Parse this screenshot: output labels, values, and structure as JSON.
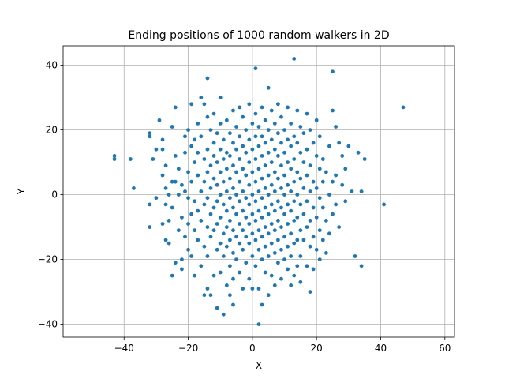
{
  "chart_data": {
    "type": "scatter",
    "title": "Ending positions of 1000 random walkers in 2D",
    "xlabel": "X",
    "ylabel": "Y",
    "xlim": [
      -59,
      63
    ],
    "ylim": [
      -44,
      46
    ],
    "x_ticks": [
      -40,
      -20,
      0,
      20,
      40,
      60
    ],
    "y_ticks": [
      -40,
      -20,
      0,
      20,
      40
    ],
    "x_tick_labels": [
      "−40",
      "−20",
      "0",
      "20",
      "40",
      "60"
    ],
    "y_tick_labels": [
      "−40",
      "−20",
      "0",
      "20",
      "40"
    ],
    "grid": true,
    "legend": "none",
    "marker_color": "#1f77b4",
    "points": [
      [
        -43,
        12
      ],
      [
        -43,
        11
      ],
      [
        -38,
        11
      ],
      [
        -37,
        2
      ],
      [
        -32,
        19
      ],
      [
        -32,
        18
      ],
      [
        -32,
        -3
      ],
      [
        -32,
        -10
      ],
      [
        -31,
        11
      ],
      [
        -30,
        14
      ],
      [
        -30,
        -1
      ],
      [
        -29,
        23
      ],
      [
        -28,
        17
      ],
      [
        -28,
        14
      ],
      [
        -28,
        6
      ],
      [
        -28,
        -9
      ],
      [
        -27,
        9
      ],
      [
        -27,
        2
      ],
      [
        -27,
        -3
      ],
      [
        -27,
        -14
      ],
      [
        -26,
        0
      ],
      [
        -26,
        -8
      ],
      [
        -26,
        -15
      ],
      [
        -25,
        4
      ],
      [
        -25,
        21
      ],
      [
        -25,
        -4
      ],
      [
        -25,
        -25
      ],
      [
        -24,
        27
      ],
      [
        -24,
        12
      ],
      [
        -24,
        4
      ],
      [
        -24,
        -21
      ],
      [
        -23,
        8
      ],
      [
        -23,
        0
      ],
      [
        -23,
        -11
      ],
      [
        -22,
        3
      ],
      [
        -22,
        -7
      ],
      [
        -22,
        -20
      ],
      [
        -22,
        -23
      ],
      [
        -21,
        18
      ],
      [
        -21,
        13
      ],
      [
        -21,
        1
      ],
      [
        -21,
        -13
      ],
      [
        -20,
        20
      ],
      [
        -20,
        7
      ],
      [
        -20,
        -1
      ],
      [
        -20,
        -9
      ],
      [
        -20,
        -17
      ],
      [
        -19,
        28
      ],
      [
        -19,
        15
      ],
      [
        -19,
        4
      ],
      [
        -19,
        -6
      ],
      [
        -19,
        -19
      ],
      [
        -18,
        17
      ],
      [
        -18,
        10
      ],
      [
        -18,
        -2
      ],
      [
        -18,
        -11
      ],
      [
        -18,
        -25
      ],
      [
        -17,
        22
      ],
      [
        -17,
        13
      ],
      [
        -17,
        6
      ],
      [
        -17,
        -5
      ],
      [
        -17,
        -14
      ],
      [
        -16,
        30
      ],
      [
        -16,
        18
      ],
      [
        -16,
        1
      ],
      [
        -16,
        -8
      ],
      [
        -16,
        -22
      ],
      [
        -15,
        28
      ],
      [
        -15,
        11
      ],
      [
        -15,
        4
      ],
      [
        -15,
        -3
      ],
      [
        -15,
        -16
      ],
      [
        -15,
        -31
      ],
      [
        -14,
        36
      ],
      [
        -14,
        24
      ],
      [
        -14,
        14
      ],
      [
        -14,
        7
      ],
      [
        -14,
        -1
      ],
      [
        -14,
        -10
      ],
      [
        -14,
        -19
      ],
      [
        -14,
        -29
      ],
      [
        -13,
        20
      ],
      [
        -13,
        9
      ],
      [
        -13,
        2
      ],
      [
        -13,
        -6
      ],
      [
        -13,
        -13
      ],
      [
        -13,
        -31
      ],
      [
        -12,
        25
      ],
      [
        -12,
        16
      ],
      [
        -12,
        12
      ],
      [
        -12,
        5
      ],
      [
        -12,
        -4
      ],
      [
        -12,
        -11
      ],
      [
        -12,
        -25
      ],
      [
        -11,
        19
      ],
      [
        -11,
        10
      ],
      [
        -11,
        3
      ],
      [
        -11,
        -2
      ],
      [
        -11,
        -9
      ],
      [
        -11,
        -17
      ],
      [
        -11,
        -35
      ],
      [
        -10,
        30
      ],
      [
        -10,
        22
      ],
      [
        -10,
        14
      ],
      [
        -10,
        7
      ],
      [
        -10,
        0
      ],
      [
        -10,
        -7
      ],
      [
        -10,
        -15
      ],
      [
        -10,
        -24
      ],
      [
        -9,
        17
      ],
      [
        -9,
        11
      ],
      [
        -9,
        4
      ],
      [
        -9,
        -3
      ],
      [
        -9,
        -12
      ],
      [
        -9,
        -19
      ],
      [
        -9,
        -37
      ],
      [
        -8,
        23
      ],
      [
        -8,
        13
      ],
      [
        -8,
        8
      ],
      [
        -8,
        1
      ],
      [
        -8,
        -5
      ],
      [
        -8,
        -10
      ],
      [
        -8,
        -16
      ],
      [
        -8,
        -28
      ],
      [
        -7,
        19
      ],
      [
        -7,
        12
      ],
      [
        -7,
        5
      ],
      [
        -7,
        -1
      ],
      [
        -7,
        -8
      ],
      [
        -7,
        -14
      ],
      [
        -7,
        -22
      ],
      [
        -7,
        -31
      ],
      [
        -6,
        26
      ],
      [
        -6,
        16
      ],
      [
        -6,
        9
      ],
      [
        -6,
        2
      ],
      [
        -6,
        -4
      ],
      [
        -6,
        -11
      ],
      [
        -6,
        -18
      ],
      [
        -6,
        -26
      ],
      [
        -6,
        -34
      ],
      [
        -5,
        21
      ],
      [
        -5,
        14
      ],
      [
        -5,
        7
      ],
      [
        -5,
        0
      ],
      [
        -5,
        -6
      ],
      [
        -5,
        -13
      ],
      [
        -5,
        -20
      ],
      [
        -4,
        27
      ],
      [
        -4,
        18
      ],
      [
        -4,
        11
      ],
      [
        -4,
        4
      ],
      [
        -4,
        -2
      ],
      [
        -4,
        -9
      ],
      [
        -4,
        -15
      ],
      [
        -4,
        -24
      ],
      [
        -3,
        24
      ],
      [
        -3,
        15
      ],
      [
        -3,
        8
      ],
      [
        -3,
        1
      ],
      [
        -3,
        -5
      ],
      [
        -3,
        -11
      ],
      [
        -3,
        -17
      ],
      [
        -3,
        -29
      ],
      [
        -2,
        20
      ],
      [
        -2,
        13
      ],
      [
        -2,
        6
      ],
      [
        -2,
        -1
      ],
      [
        -2,
        -7
      ],
      [
        -2,
        -13
      ],
      [
        -2,
        -21
      ],
      [
        -1,
        28
      ],
      [
        -1,
        17
      ],
      [
        -1,
        10
      ],
      [
        -1,
        3
      ],
      [
        -1,
        -3
      ],
      [
        -1,
        -9
      ],
      [
        -1,
        -15
      ],
      [
        -1,
        -26
      ],
      [
        0,
        22
      ],
      [
        0,
        14
      ],
      [
        0,
        7
      ],
      [
        0,
        0
      ],
      [
        0,
        -6
      ],
      [
        0,
        -12
      ],
      [
        0,
        -19
      ],
      [
        0,
        -29
      ],
      [
        1,
        39
      ],
      [
        1,
        25
      ],
      [
        1,
        18
      ],
      [
        1,
        11
      ],
      [
        1,
        4
      ],
      [
        1,
        -2
      ],
      [
        1,
        -8
      ],
      [
        1,
        -14
      ],
      [
        1,
        -22
      ],
      [
        2,
        21
      ],
      [
        2,
        15
      ],
      [
        2,
        8
      ],
      [
        2,
        1
      ],
      [
        2,
        -5
      ],
      [
        2,
        -11
      ],
      [
        2,
        -17
      ],
      [
        2,
        -29
      ],
      [
        2,
        -40
      ],
      [
        3,
        27
      ],
      [
        3,
        18
      ],
      [
        3,
        12
      ],
      [
        3,
        5
      ],
      [
        3,
        -1
      ],
      [
        3,
        -7
      ],
      [
        3,
        -13
      ],
      [
        3,
        -20
      ],
      [
        3,
        -34
      ],
      [
        4,
        23
      ],
      [
        4,
        16
      ],
      [
        4,
        9
      ],
      [
        4,
        2
      ],
      [
        4,
        -4
      ],
      [
        4,
        -10
      ],
      [
        4,
        -16
      ],
      [
        4,
        -24
      ],
      [
        5,
        33
      ],
      [
        5,
        20
      ],
      [
        5,
        13
      ],
      [
        5,
        6
      ],
      [
        5,
        0
      ],
      [
        5,
        -6
      ],
      [
        5,
        -12
      ],
      [
        5,
        -19
      ],
      [
        5,
        -31
      ],
      [
        6,
        26
      ],
      [
        6,
        17
      ],
      [
        6,
        10
      ],
      [
        6,
        3
      ],
      [
        6,
        -3
      ],
      [
        6,
        -9
      ],
      [
        6,
        -15
      ],
      [
        6,
        -25
      ],
      [
        7,
        22
      ],
      [
        7,
        14
      ],
      [
        7,
        7
      ],
      [
        7,
        1
      ],
      [
        7,
        -5
      ],
      [
        7,
        -11
      ],
      [
        7,
        -18
      ],
      [
        7,
        -28
      ],
      [
        8,
        28
      ],
      [
        8,
        19
      ],
      [
        8,
        12
      ],
      [
        8,
        5
      ],
      [
        8,
        -2
      ],
      [
        8,
        -8
      ],
      [
        8,
        -14
      ],
      [
        8,
        -21
      ],
      [
        9,
        24
      ],
      [
        9,
        16
      ],
      [
        9,
        9
      ],
      [
        9,
        2
      ],
      [
        9,
        -4
      ],
      [
        9,
        -10
      ],
      [
        9,
        -17
      ],
      [
        9,
        -26
      ],
      [
        10,
        20
      ],
      [
        10,
        13
      ],
      [
        10,
        6
      ],
      [
        10,
        0
      ],
      [
        10,
        -6
      ],
      [
        10,
        -13
      ],
      [
        10,
        -20
      ],
      [
        11,
        27
      ],
      [
        11,
        17
      ],
      [
        11,
        10
      ],
      [
        11,
        3
      ],
      [
        11,
        -3
      ],
      [
        11,
        -9
      ],
      [
        11,
        -16
      ],
      [
        11,
        -23
      ],
      [
        12,
        22
      ],
      [
        12,
        15
      ],
      [
        12,
        8
      ],
      [
        12,
        1
      ],
      [
        12,
        -5
      ],
      [
        12,
        -12
      ],
      [
        12,
        -19
      ],
      [
        12,
        -28
      ],
      [
        13,
        42
      ],
      [
        13,
        18
      ],
      [
        13,
        11
      ],
      [
        13,
        4
      ],
      [
        13,
        -2
      ],
      [
        13,
        -8
      ],
      [
        13,
        -15
      ],
      [
        13,
        -25
      ],
      [
        14,
        26
      ],
      [
        14,
        16
      ],
      [
        14,
        7
      ],
      [
        14,
        0
      ],
      [
        14,
        -7
      ],
      [
        14,
        -14
      ],
      [
        14,
        -22
      ],
      [
        15,
        21
      ],
      [
        15,
        13
      ],
      [
        15,
        5
      ],
      [
        15,
        -3
      ],
      [
        15,
        -11
      ],
      [
        15,
        -19
      ],
      [
        15,
        -27
      ],
      [
        16,
        19
      ],
      [
        16,
        10
      ],
      [
        16,
        2
      ],
      [
        16,
        -6
      ],
      [
        16,
        -14
      ],
      [
        17,
        25
      ],
      [
        17,
        14
      ],
      [
        17,
        6
      ],
      [
        17,
        -2
      ],
      [
        17,
        -10
      ],
      [
        17,
        -22
      ],
      [
        18,
        20
      ],
      [
        18,
        9
      ],
      [
        18,
        1
      ],
      [
        18,
        -8
      ],
      [
        18,
        -16
      ],
      [
        18,
        -30
      ],
      [
        19,
        16
      ],
      [
        19,
        4
      ],
      [
        19,
        -4
      ],
      [
        19,
        -13
      ],
      [
        19,
        -23
      ],
      [
        20,
        23
      ],
      [
        20,
        12
      ],
      [
        20,
        2
      ],
      [
        20,
        -7
      ],
      [
        20,
        -17
      ],
      [
        21,
        18
      ],
      [
        21,
        8
      ],
      [
        21,
        -1
      ],
      [
        21,
        -11
      ],
      [
        21,
        -20
      ],
      [
        22,
        11
      ],
      [
        22,
        4
      ],
      [
        22,
        -4
      ],
      [
        22,
        -14
      ],
      [
        23,
        7
      ],
      [
        23,
        -8
      ],
      [
        23,
        -18
      ],
      [
        24,
        15
      ],
      [
        24,
        0
      ],
      [
        24,
        -12
      ],
      [
        25,
        38
      ],
      [
        25,
        26
      ],
      [
        25,
        4
      ],
      [
        25,
        -6
      ],
      [
        26,
        21
      ],
      [
        26,
        6
      ],
      [
        26,
        -3
      ],
      [
        27,
        16
      ],
      [
        27,
        -10
      ],
      [
        28,
        12
      ],
      [
        28,
        3
      ],
      [
        29,
        8
      ],
      [
        29,
        -2
      ],
      [
        30,
        15
      ],
      [
        31,
        1
      ],
      [
        32,
        -19
      ],
      [
        33,
        13
      ],
      [
        34,
        -22
      ],
      [
        34,
        1
      ],
      [
        35,
        11
      ],
      [
        41,
        -3
      ],
      [
        47,
        27
      ]
    ]
  }
}
